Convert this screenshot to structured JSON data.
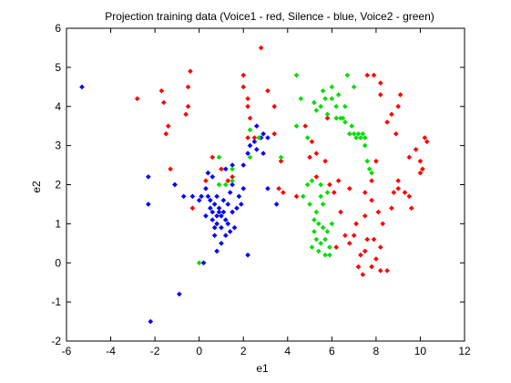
{
  "chart_data": {
    "type": "scatter",
    "title": "Projection training data (Voice1 - red, Silence - blue, Voice2 - green)",
    "xlabel": "e1",
    "ylabel": "e2",
    "xlim": [
      -6,
      12
    ],
    "ylim": [
      -2,
      6
    ],
    "xticks": [
      -6,
      -4,
      -2,
      0,
      2,
      4,
      6,
      8,
      10,
      12
    ],
    "yticks": [
      -2,
      -1,
      0,
      1,
      2,
      3,
      4,
      5,
      6
    ],
    "grid": false,
    "series": [
      {
        "color": "#ff0000",
        "points": [
          [
            -2.8,
            4.2
          ],
          [
            -1.7,
            4.4
          ],
          [
            -1.6,
            4.1
          ],
          [
            -1.4,
            3.5
          ],
          [
            -1.5,
            3.3
          ],
          [
            -1.3,
            2.4
          ],
          [
            -1.1,
            2.0
          ],
          [
            -0.5,
            4.5
          ],
          [
            -0.4,
            4.9
          ],
          [
            -0.5,
            4.0
          ],
          [
            -0.6,
            3.8
          ],
          [
            -0.3,
            1.4
          ],
          [
            0.3,
            2.1
          ],
          [
            0.6,
            2.7
          ],
          [
            1.0,
            2.4
          ],
          [
            1.3,
            2.1
          ],
          [
            1.5,
            2.2
          ],
          [
            2.0,
            4.8
          ],
          [
            2.0,
            4.5
          ],
          [
            2.2,
            4.2
          ],
          [
            2.2,
            4.0
          ],
          [
            2.3,
            3.7
          ],
          [
            2.2,
            3.2
          ],
          [
            2.5,
            3.2
          ],
          [
            2.8,
            5.5
          ],
          [
            3.1,
            4.4
          ],
          [
            3.4,
            4.0
          ],
          [
            3.4,
            3.3
          ],
          [
            3.7,
            2.6
          ],
          [
            3.6,
            1.9
          ],
          [
            3.8,
            1.8
          ],
          [
            4.8,
            3.5
          ],
          [
            5.1,
            3.1
          ],
          [
            5.3,
            2.8
          ],
          [
            5.0,
            2.7
          ],
          [
            5.8,
            3.7
          ],
          [
            5.7,
            2.6
          ],
          [
            5.9,
            2.0
          ],
          [
            6.1,
            1.8
          ],
          [
            6.3,
            2.1
          ],
          [
            6.4,
            1.3
          ],
          [
            6.6,
            0.7
          ],
          [
            6.2,
            0.4
          ],
          [
            6.8,
            0.5
          ],
          [
            7.0,
            0.7
          ],
          [
            7.1,
            1.0
          ],
          [
            7.2,
            -0.1
          ],
          [
            7.4,
            -0.3
          ],
          [
            7.3,
            0.2
          ],
          [
            7.5,
            0.3
          ],
          [
            7.6,
            0.6
          ],
          [
            7.8,
            -0.1
          ],
          [
            8.0,
            0.1
          ],
          [
            8.2,
            0.4
          ],
          [
            8.5,
            -0.2
          ],
          [
            8.2,
            -0.2
          ],
          [
            7.9,
            0.6
          ],
          [
            7.6,
            4.8
          ],
          [
            7.9,
            4.8
          ],
          [
            8.2,
            4.6
          ],
          [
            8.2,
            4.3
          ],
          [
            8.5,
            3.6
          ],
          [
            8.7,
            3.8
          ],
          [
            8.9,
            3.3
          ],
          [
            9.1,
            4.3
          ],
          [
            9.0,
            4.0
          ],
          [
            8.0,
            2.6
          ],
          [
            7.8,
            2.1
          ],
          [
            7.5,
            1.8
          ],
          [
            7.8,
            1.6
          ],
          [
            8.1,
            1.3
          ],
          [
            8.3,
            1.0
          ],
          [
            8.7,
            1.4
          ],
          [
            8.8,
            1.8
          ],
          [
            9.0,
            2.1
          ],
          [
            9.0,
            1.9
          ],
          [
            9.3,
            1.8
          ],
          [
            9.5,
            1.7
          ],
          [
            9.6,
            1.4
          ],
          [
            9.5,
            2.7
          ],
          [
            9.8,
            2.9
          ],
          [
            10.0,
            2.6
          ],
          [
            10.2,
            3.2
          ],
          [
            10.3,
            3.1
          ],
          [
            10.1,
            2.4
          ],
          [
            10.0,
            2.3
          ],
          [
            7.5,
            1.2
          ],
          [
            6.8,
            1.9
          ],
          [
            5.3,
            2.2
          ],
          [
            4.4,
            1.7
          ]
        ]
      },
      {
        "color": "#0000ff",
        "points": [
          [
            -5.3,
            4.5
          ],
          [
            -2.3,
            2.2
          ],
          [
            -2.3,
            1.5
          ],
          [
            -2.2,
            -1.5
          ],
          [
            -1.1,
            2.0
          ],
          [
            -0.9,
            -0.8
          ],
          [
            -0.7,
            1.7
          ],
          [
            0.2,
            0.0
          ],
          [
            -0.3,
            1.7
          ],
          [
            0.0,
            1.6
          ],
          [
            0.3,
            1.2
          ],
          [
            0.4,
            1.7
          ],
          [
            0.5,
            1.6
          ],
          [
            0.5,
            1.4
          ],
          [
            0.6,
            1.3
          ],
          [
            0.6,
            1.1
          ],
          [
            0.7,
            1.5
          ],
          [
            0.7,
            0.9
          ],
          [
            0.8,
            1.7
          ],
          [
            0.8,
            1.2
          ],
          [
            0.8,
            1.0
          ],
          [
            0.9,
            1.4
          ],
          [
            0.9,
            1.3
          ],
          [
            1.0,
            1.2
          ],
          [
            1.0,
            0.9
          ],
          [
            1.1,
            1.6
          ],
          [
            1.1,
            1.3
          ],
          [
            1.2,
            1.1
          ],
          [
            1.2,
            0.7
          ],
          [
            1.0,
            0.5
          ],
          [
            0.8,
            0.3
          ],
          [
            1.3,
            1.5
          ],
          [
            1.3,
            1.0
          ],
          [
            1.4,
            1.8
          ],
          [
            1.5,
            1.3
          ],
          [
            1.6,
            0.9
          ],
          [
            1.7,
            1.4
          ],
          [
            1.8,
            1.7
          ],
          [
            1.9,
            1.5
          ],
          [
            2.0,
            1.9
          ],
          [
            1.5,
            2.0
          ],
          [
            1.2,
            2.4
          ],
          [
            1.5,
            2.5
          ],
          [
            2.0,
            2.5
          ],
          [
            2.2,
            2.8
          ],
          [
            2.3,
            3.0
          ],
          [
            2.5,
            3.1
          ],
          [
            2.6,
            2.9
          ],
          [
            2.8,
            3.2
          ],
          [
            2.9,
            3.3
          ],
          [
            2.9,
            2.8
          ],
          [
            3.1,
            3.2
          ],
          [
            2.6,
            3.5
          ],
          [
            2.2,
            0.2
          ],
          [
            3.1,
            1.9
          ],
          [
            3.5,
            1.5
          ],
          [
            0.6,
            2.2
          ],
          [
            0.4,
            2.3
          ],
          [
            0.3,
            1.9
          ],
          [
            0.1,
            1.7
          ],
          [
            1.4,
            0.8
          ],
          [
            0.7,
            0.7
          ]
        ]
      },
      {
        "color": "#00dd00",
        "points": [
          [
            0.0,
            0.0
          ],
          [
            0.9,
            2.0
          ],
          [
            0.9,
            2.7
          ],
          [
            1.2,
            2.0
          ],
          [
            1.5,
            2.1
          ],
          [
            1.5,
            2.4
          ],
          [
            2.3,
            2.7
          ],
          [
            2.7,
            3.2
          ],
          [
            2.3,
            3.4
          ],
          [
            3.7,
            2.7
          ],
          [
            4.4,
            4.8
          ],
          [
            4.6,
            4.2
          ],
          [
            4.4,
            3.5
          ],
          [
            4.9,
            3.2
          ],
          [
            4.9,
            2.0
          ],
          [
            5.0,
            1.5
          ],
          [
            5.1,
            0.4
          ],
          [
            5.2,
            0.8
          ],
          [
            5.2,
            1.1
          ],
          [
            5.3,
            0.6
          ],
          [
            5.3,
            1.3
          ],
          [
            5.4,
            1.0
          ],
          [
            5.4,
            0.3
          ],
          [
            5.5,
            0.5
          ],
          [
            5.5,
            1.7
          ],
          [
            5.5,
            2.0
          ],
          [
            5.6,
            0.9
          ],
          [
            5.6,
            1.5
          ],
          [
            5.7,
            0.6
          ],
          [
            5.7,
            0.2
          ],
          [
            5.8,
            0.8
          ],
          [
            5.9,
            0.4
          ],
          [
            6.0,
            1.0
          ],
          [
            5.8,
            1.8
          ],
          [
            5.9,
            0.2
          ],
          [
            5.2,
            4.1
          ],
          [
            5.3,
            3.9
          ],
          [
            5.5,
            4.0
          ],
          [
            5.6,
            4.4
          ],
          [
            5.7,
            4.2
          ],
          [
            5.8,
            3.8
          ],
          [
            6.0,
            4.5
          ],
          [
            6.0,
            4.2
          ],
          [
            6.2,
            3.7
          ],
          [
            6.2,
            4.0
          ],
          [
            6.3,
            4.3
          ],
          [
            6.4,
            3.7
          ],
          [
            6.5,
            3.7
          ],
          [
            6.6,
            3.6
          ],
          [
            6.6,
            4.0
          ],
          [
            6.7,
            4.8
          ],
          [
            6.8,
            3.3
          ],
          [
            6.9,
            3.5
          ],
          [
            7.0,
            3.3
          ],
          [
            7.1,
            3.2
          ],
          [
            7.2,
            3.3
          ],
          [
            7.3,
            3.2
          ],
          [
            7.4,
            3.3
          ],
          [
            7.5,
            3.2
          ],
          [
            7.5,
            3.0
          ],
          [
            7.6,
            2.6
          ],
          [
            7.7,
            2.4
          ],
          [
            7.8,
            2.3
          ],
          [
            7.0,
            4.5
          ],
          [
            5.1,
            2.1
          ],
          [
            4.7,
            1.7
          ]
        ]
      }
    ]
  }
}
